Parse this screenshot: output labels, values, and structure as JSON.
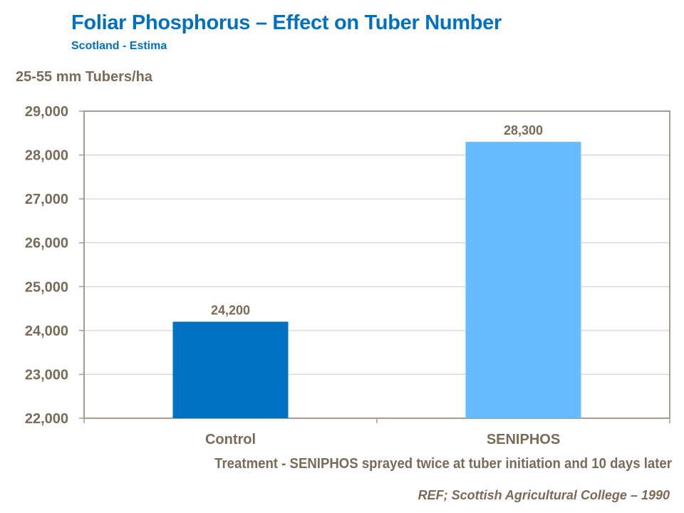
{
  "chart_data": {
    "type": "bar",
    "title": "Foliar Phosphorus  – Effect on Tuber Number",
    "subtitle": "Scotland - Estima",
    "ylabel": "25-55 mm Tubers/ha",
    "xlabel": "Treatment - SENIPHOS sprayed twice at tuber initiation and 10 days later",
    "categories": [
      "Control",
      "SENIPHOS"
    ],
    "values": [
      24200,
      28300
    ],
    "data_labels": [
      "24,200",
      "28,300"
    ],
    "ylim": [
      22000,
      29000
    ],
    "yticks": [
      22000,
      23000,
      24000,
      25000,
      26000,
      27000,
      28000,
      29000
    ],
    "ytick_labels": [
      "22,000",
      "23,000",
      "24,000",
      "25,000",
      "26,000",
      "27,000",
      "28,000",
      "29,000"
    ],
    "grid": true,
    "legend": "none",
    "colors": [
      "#0070c0",
      "#66bbff"
    ],
    "reference": "REF; Scottish Agricultural College – 1990"
  }
}
